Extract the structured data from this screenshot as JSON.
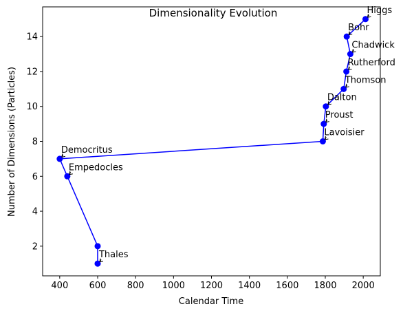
{
  "chart_data": {
    "type": "line",
    "title": "Dimensionality Evolution",
    "xlabel": "Calendar Time",
    "ylabel": "Number of Dimensions (Particles)",
    "xlim": [
      310,
      2090
    ],
    "ylim": [
      0.3,
      15.7
    ],
    "xticks": [
      400,
      600,
      800,
      1000,
      1200,
      1400,
      1600,
      1800,
      2000
    ],
    "yticks": [
      2,
      4,
      6,
      8,
      10,
      12,
      14
    ],
    "grid": false,
    "legend": "none",
    "line_color": "#0000ff",
    "marker_color": "#0000ff",
    "series": [
      {
        "x": [
          600,
          600,
          440,
          400,
          1787,
          1792,
          1803,
          1897,
          1911,
          1932,
          1913,
          2012
        ],
        "y": [
          1,
          2,
          6,
          7,
          8,
          9,
          10,
          11,
          12,
          13,
          14,
          15
        ],
        "labels": [
          "Thales",
          "",
          "Empedocles",
          "Democritus",
          "Lavoisier",
          "Proust",
          "Dalton",
          "Thomson",
          "Rutherford",
          "Chadwick",
          "Bohr",
          "Higgs"
        ]
      }
    ]
  }
}
